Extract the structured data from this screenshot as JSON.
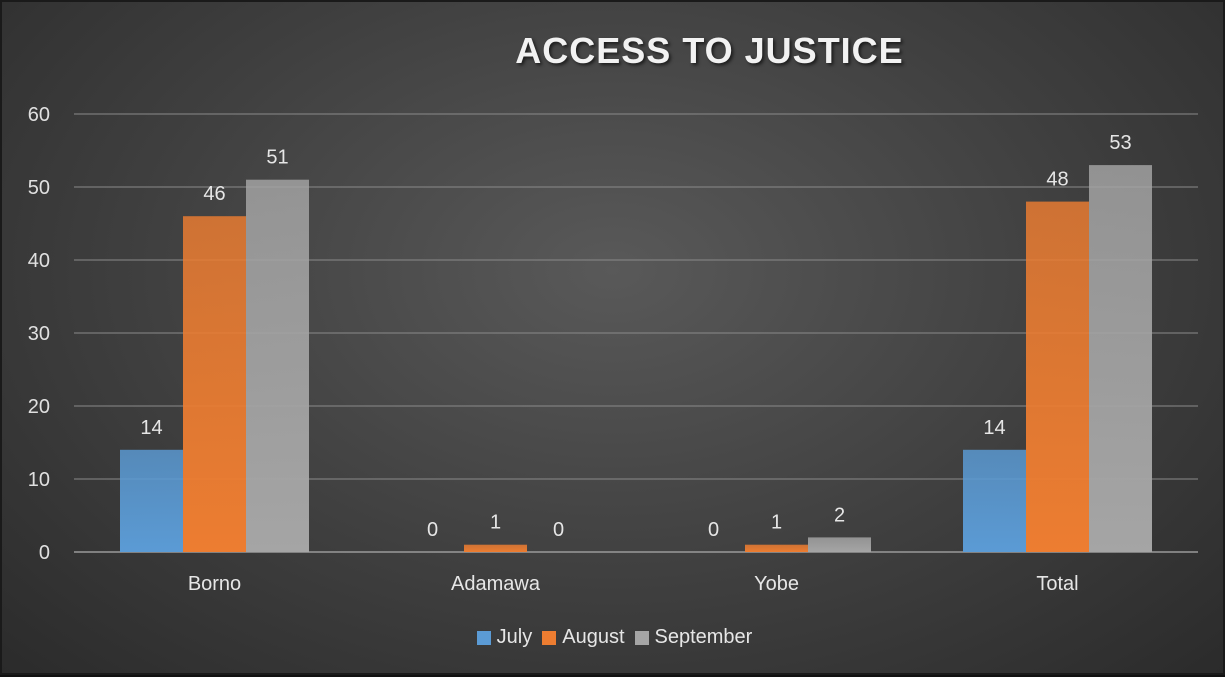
{
  "chart_data": {
    "type": "bar",
    "title": "ACCESS TO JUSTICE",
    "xlabel": "",
    "ylabel": "",
    "categories": [
      "Borno",
      "Adamawa",
      "Yobe",
      "Total"
    ],
    "series": [
      {
        "name": "July",
        "values": [
          14,
          0,
          0,
          14
        ],
        "color": "#5b9bd5"
      },
      {
        "name": "August",
        "values": [
          46,
          1,
          1,
          48
        ],
        "color": "#ed7d31"
      },
      {
        "name": "September",
        "values": [
          51,
          0,
          2,
          53
        ],
        "color": "#a5a5a5"
      }
    ],
    "ylim": [
      0,
      60
    ],
    "yticks": [
      "0",
      "10",
      "20",
      "30",
      "40",
      "50",
      "60"
    ],
    "grid": true,
    "data_labels": true,
    "legend_position": "bottom"
  }
}
